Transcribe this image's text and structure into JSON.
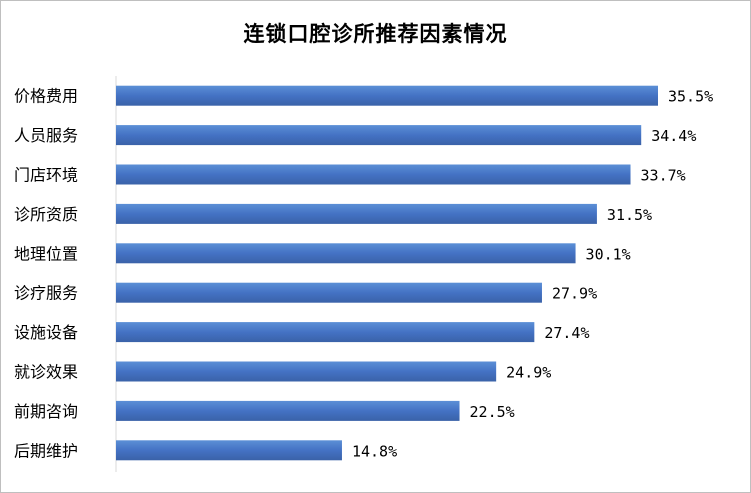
{
  "chart_data": {
    "type": "bar",
    "orientation": "horizontal",
    "title": "连锁口腔诊所推荐因素情况",
    "categories": [
      "价格费用",
      "人员服务",
      "门店环境",
      "诊所资质",
      "地理位置",
      "诊疗服务",
      "设施设备",
      "就诊效果",
      "前期咨询",
      "后期维护"
    ],
    "values": [
      35.5,
      34.4,
      33.7,
      31.5,
      30.1,
      27.9,
      27.4,
      24.9,
      22.5,
      14.8
    ],
    "value_labels": [
      "35.5%",
      "34.4%",
      "33.7%",
      "31.5%",
      "30.1%",
      "27.9%",
      "27.4%",
      "24.9%",
      "22.5%",
      "14.8%"
    ],
    "xlabel": "",
    "ylabel": "",
    "xlim": [
      0,
      40
    ],
    "grid": false,
    "legend": "none",
    "bar_color": "#4472c4",
    "bar_color_light": "#5b8fd6",
    "bar_color_dark": "#3a62a8"
  }
}
